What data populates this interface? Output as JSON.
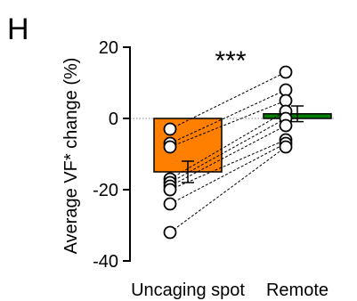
{
  "panel_label": "H",
  "chart_data": {
    "type": "bar",
    "categories": [
      "Uncaging spot",
      "Remote"
    ],
    "values": [
      -15,
      1.3
    ],
    "errors": [
      3,
      2.2
    ],
    "ylabel": "Average VF* change (%)",
    "ylim": [
      -40,
      20
    ],
    "yticks": [
      -40,
      -20,
      0,
      20
    ],
    "reference_line": 0,
    "significance": "***",
    "bar_colors": [
      "#ff7f00",
      "#007f00"
    ],
    "paired_points": [
      [
        -3,
        13
      ],
      [
        -7,
        8
      ],
      [
        -8,
        5
      ],
      [
        -17,
        2
      ],
      [
        -18,
        0
      ],
      [
        -19,
        -2
      ],
      [
        -20,
        -6
      ],
      [
        -24,
        -7
      ],
      [
        -32,
        -8
      ]
    ]
  }
}
